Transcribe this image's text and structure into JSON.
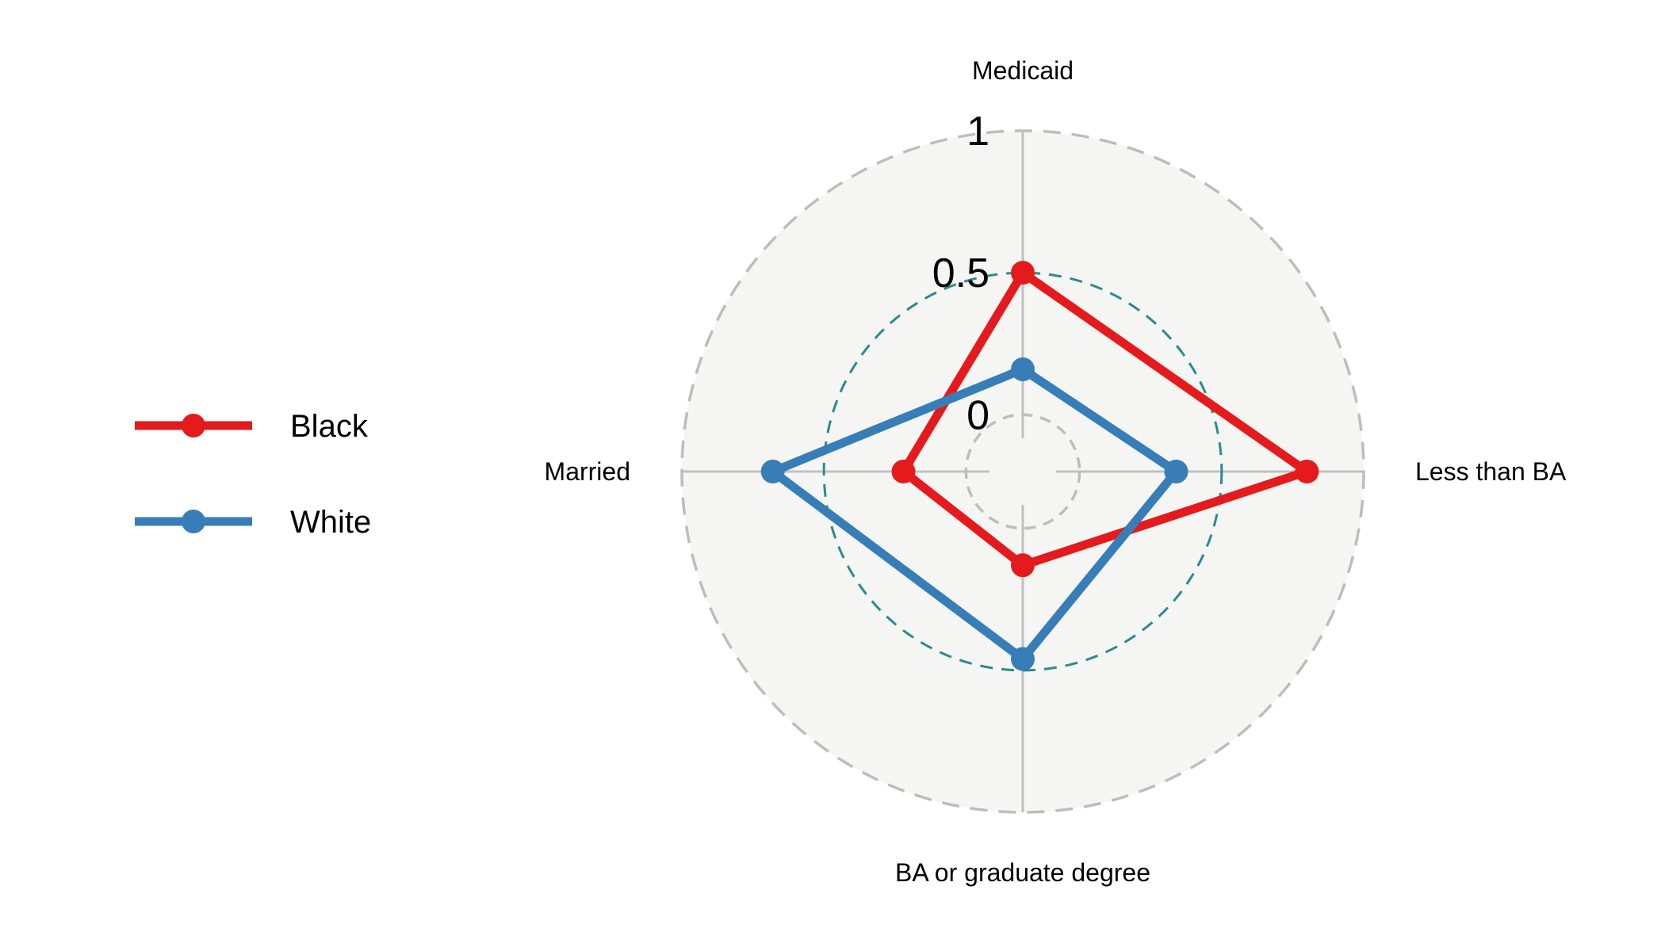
{
  "chart_data": {
    "type": "radar",
    "axes": [
      "Medicaid",
      "Less than BA",
      "BA or graduate degree",
      "Married"
    ],
    "rlim": [
      -0.2,
      1
    ],
    "ticks": [
      {
        "value": 0,
        "label": "0"
      },
      {
        "value": 0.5,
        "label": "0.5"
      },
      {
        "value": 1,
        "label": "1"
      }
    ],
    "series": [
      {
        "name": "Black",
        "color": "#e41a1c",
        "values": [
          0.5,
          0.8,
          0.13,
          0.22
        ]
      },
      {
        "name": "White",
        "color": "#377eb8",
        "values": [
          0.16,
          0.34,
          0.46,
          0.68
        ]
      }
    ],
    "legend_position": "left",
    "colors": {
      "background": "#f5f5f3",
      "outer_ring": "#bdbdbd",
      "mid_ring": "#2a8a8f",
      "inner_ring": "#bdbdbd",
      "spoke": "#c0c0c0"
    }
  }
}
